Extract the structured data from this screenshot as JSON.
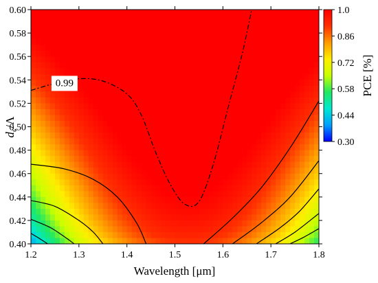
{
  "chart_data": {
    "type": "heatmap",
    "title": "",
    "xlabel": "Wavelength [μm]",
    "ylabel_parts": {
      "main": "d",
      "sub": "c",
      "rest": "/Λ"
    },
    "xlim": [
      1.2,
      1.8
    ],
    "ylim": [
      0.4,
      0.6
    ],
    "x_ticks": [
      1.2,
      1.3,
      1.4,
      1.5,
      1.6,
      1.7,
      1.8
    ],
    "x_tick_labels": [
      "1.2",
      "1.3",
      "1.4",
      "1.5",
      "1.6",
      "1.7",
      "1.8"
    ],
    "y_ticks": [
      0.4,
      0.42,
      0.44,
      0.46,
      0.48,
      0.5,
      0.52,
      0.54,
      0.56,
      0.58,
      0.6
    ],
    "y_tick_labels": [
      "0.40",
      "0.42",
      "0.44",
      "0.46",
      "0.48",
      "0.50",
      "0.52",
      "0.54",
      "0.56",
      "0.58",
      "0.60"
    ],
    "colorbar": {
      "title": "PCE [%]",
      "range": [
        0.3,
        1.0
      ],
      "ticks": [
        0.3,
        0.44,
        0.58,
        0.72,
        0.86,
        1.0
      ],
      "tick_labels": [
        "0.30",
        "0.44",
        "0.58",
        "0.72",
        "0.86",
        "1.0"
      ],
      "colors": [
        "#0000ff",
        "#00a0ff",
        "#00e8d0",
        "#20e860",
        "#c8ff00",
        "#ffee00",
        "#ff9a00",
        "#ff3000",
        "#ff0000"
      ]
    },
    "contours": [
      {
        "level": 0.99,
        "style": "dashdot",
        "label": "0.99",
        "points": [
          [
            1.2,
            0.531
          ],
          [
            1.25,
            0.537
          ],
          [
            1.3,
            0.541
          ],
          [
            1.35,
            0.539
          ],
          [
            1.4,
            0.528
          ],
          [
            1.43,
            0.51
          ],
          [
            1.46,
            0.478
          ],
          [
            1.49,
            0.451
          ],
          [
            1.52,
            0.434
          ],
          [
            1.55,
            0.436
          ],
          [
            1.58,
            0.468
          ],
          [
            1.61,
            0.515
          ],
          [
            1.64,
            0.562
          ],
          [
            1.66,
            0.6
          ]
        ]
      },
      {
        "level": 0.93,
        "style": "solid",
        "label": "",
        "points": [
          [
            1.2,
            0.468
          ],
          [
            1.27,
            0.464
          ],
          [
            1.33,
            0.455
          ],
          [
            1.38,
            0.44
          ],
          [
            1.42,
            0.418
          ],
          [
            1.44,
            0.4
          ]
        ]
      },
      {
        "level": 0.93,
        "style": "solid",
        "label": "",
        "points": [
          [
            1.56,
            0.4
          ],
          [
            1.62,
            0.422
          ],
          [
            1.68,
            0.448
          ],
          [
            1.74,
            0.482
          ],
          [
            1.8,
            0.522
          ]
        ]
      },
      {
        "level": 0.86,
        "style": "solid",
        "label": "",
        "points": [
          [
            1.2,
            0.437
          ],
          [
            1.25,
            0.432
          ],
          [
            1.3,
            0.42
          ],
          [
            1.33,
            0.41
          ],
          [
            1.35,
            0.4
          ]
        ]
      },
      {
        "level": 0.86,
        "style": "solid",
        "label": "",
        "points": [
          [
            1.62,
            0.4
          ],
          [
            1.68,
            0.418
          ],
          [
            1.74,
            0.44
          ],
          [
            1.8,
            0.471
          ]
        ]
      },
      {
        "level": 0.79,
        "style": "solid",
        "label": "",
        "points": [
          [
            1.2,
            0.421
          ],
          [
            1.24,
            0.414
          ],
          [
            1.27,
            0.406
          ],
          [
            1.29,
            0.4
          ]
        ]
      },
      {
        "level": 0.79,
        "style": "solid",
        "label": "",
        "points": [
          [
            1.67,
            0.4
          ],
          [
            1.72,
            0.414
          ],
          [
            1.76,
            0.428
          ],
          [
            1.8,
            0.447
          ]
        ]
      },
      {
        "level": 0.72,
        "style": "solid",
        "label": "",
        "points": [
          [
            1.2,
            0.409
          ],
          [
            1.22,
            0.404
          ],
          [
            1.235,
            0.4
          ]
        ]
      },
      {
        "level": 0.72,
        "style": "solid",
        "label": "",
        "points": [
          [
            1.71,
            0.4
          ],
          [
            1.75,
            0.41
          ],
          [
            1.8,
            0.426
          ]
        ]
      },
      {
        "level": 0.65,
        "style": "solid",
        "label": "",
        "points": [
          [
            1.74,
            0.4
          ],
          [
            1.77,
            0.406
          ],
          [
            1.8,
            0.413
          ]
        ]
      }
    ],
    "contour_label_position": {
      "x": 1.27,
      "y": 0.537
    }
  }
}
